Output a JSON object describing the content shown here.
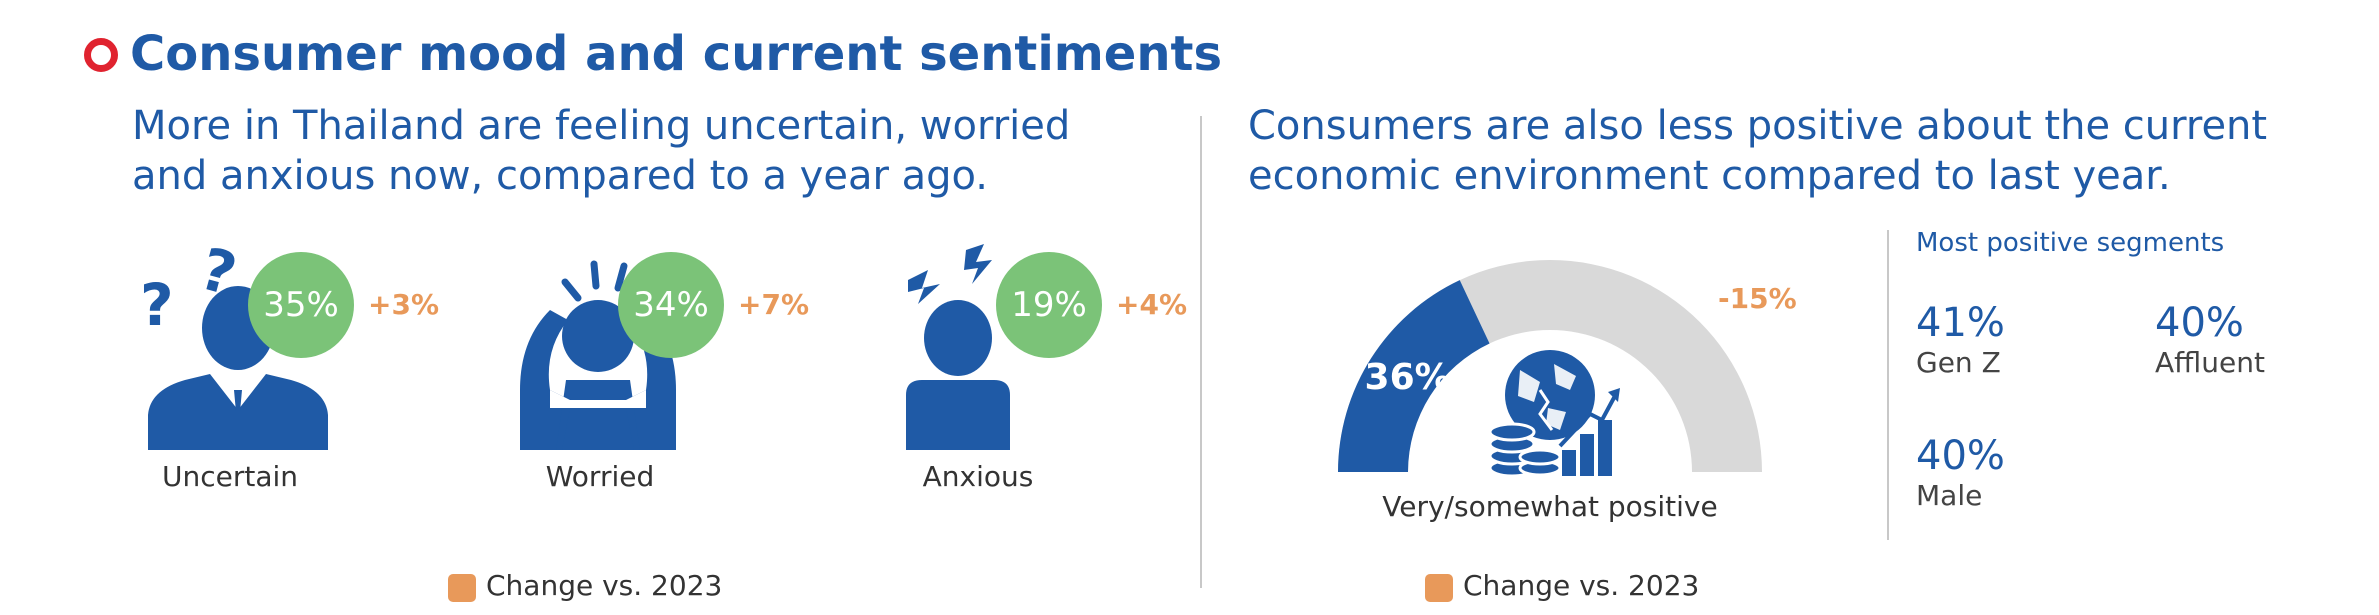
{
  "header": {
    "title": "Consumer mood and current sentiments"
  },
  "left_panel": {
    "subtitle_line1": "More in Thailand are feeling uncertain, worried",
    "subtitle_line2": "and anxious now, compared to a year ago.",
    "legend": "Change vs. 2023"
  },
  "right_panel": {
    "subtitle_line1": "Consumers are also less positive about the current",
    "subtitle_line2": "economic environment compared to last year.",
    "legend": "Change vs. 2023",
    "gauge_caption": "Very/somewhat positive",
    "segments_title": "Most positive segments"
  },
  "colors": {
    "brand_blue": "#1f5aa6",
    "green": "#7bc378",
    "orange": "#e8995a",
    "gray": "#d9d9d9",
    "red": "#e0232f"
  },
  "chart_data": [
    {
      "type": "bar",
      "categories": [
        "Uncertain",
        "Worried",
        "Anxious"
      ],
      "values": [
        "35%",
        "34%",
        "19%"
      ],
      "change": [
        "+3%",
        "+7%",
        "+4%"
      ],
      "icons": [
        "confused-person-icon",
        "stressed-person-icon",
        "anxious-person-icon"
      ]
    },
    {
      "type": "pie",
      "subtype": "semi-gauge",
      "value": 36,
      "value_label": "36%",
      "change": "-15%",
      "icon": "economy-globe-coins-icon"
    },
    {
      "type": "table",
      "segments": [
        {
          "value": "41%",
          "name": "Gen Z"
        },
        {
          "value": "40%",
          "name": "Affluent"
        },
        {
          "value": "40%",
          "name": "Male"
        }
      ]
    }
  ]
}
